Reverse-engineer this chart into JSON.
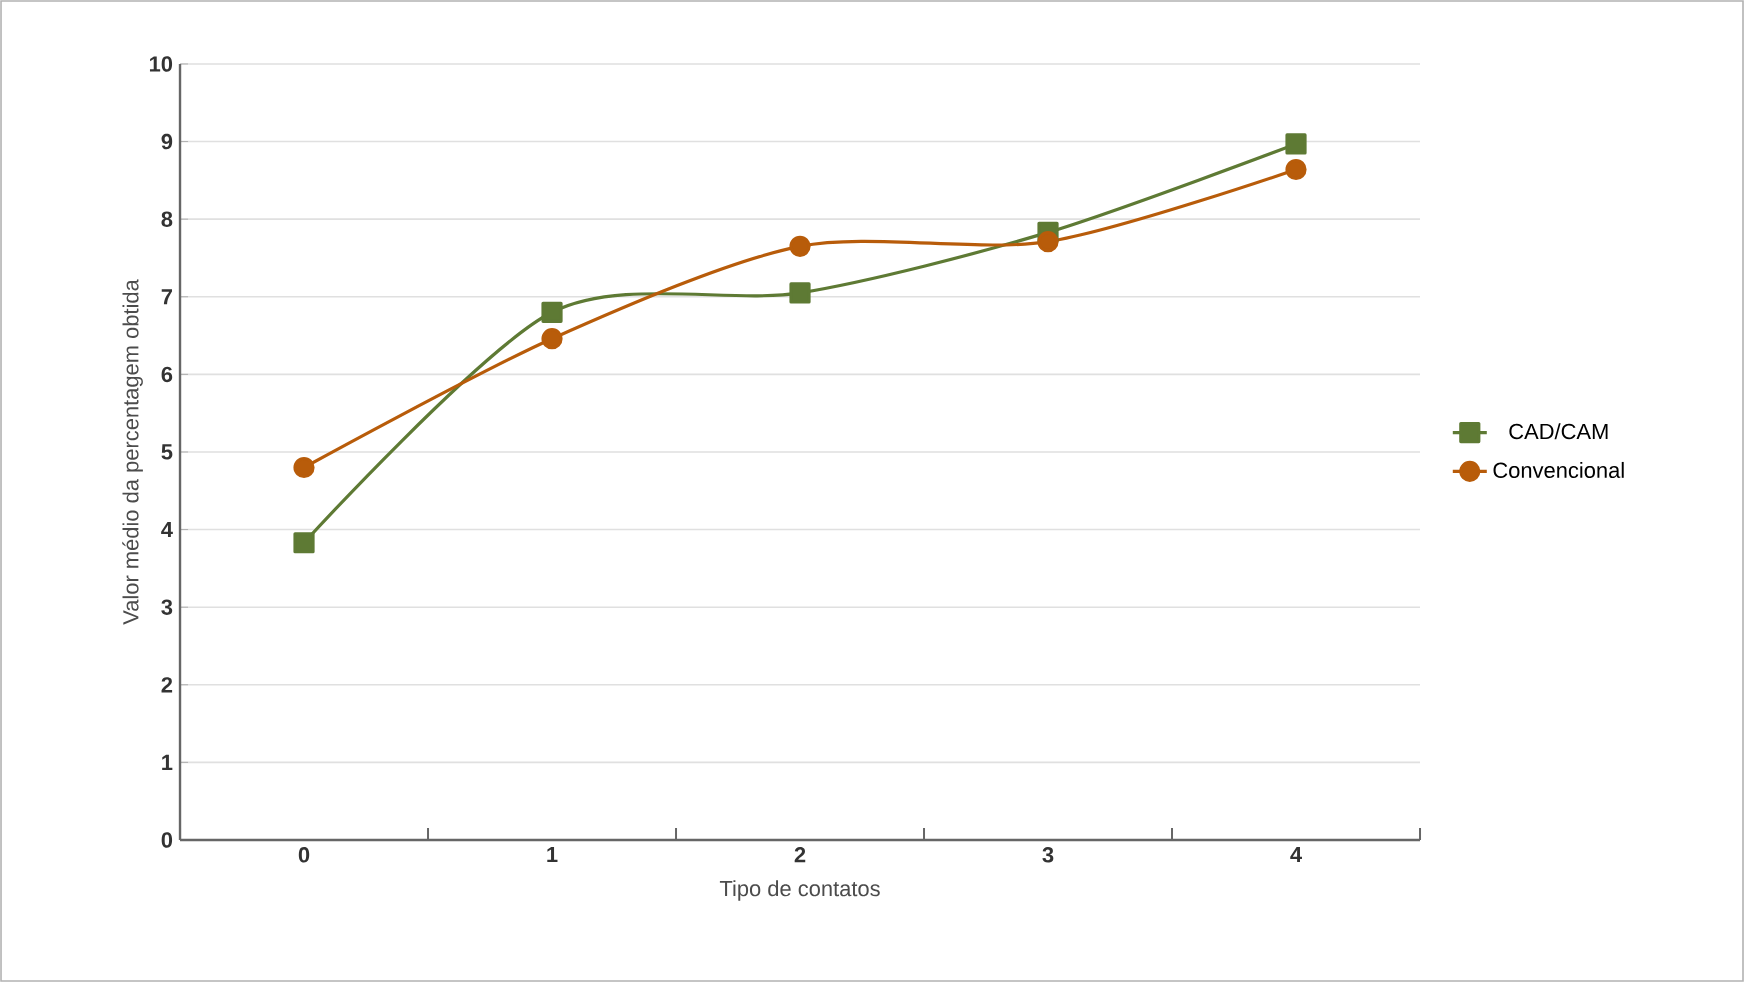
{
  "chart_data": {
    "type": "line",
    "xlabel": "Tipo de contatos",
    "ylabel": "Valor médio da percentagem obtida",
    "categories": [
      "0",
      "1",
      "2",
      "3",
      "4"
    ],
    "series": [
      {
        "name": "CAD/CAM",
        "color": "#5e7a34",
        "marker": "square",
        "values": [
          3.83,
          6.8,
          7.05,
          7.83,
          8.97
        ]
      },
      {
        "name": "Convencional",
        "color": "#b85c0a",
        "marker": "circle",
        "values": [
          4.8,
          6.46,
          7.65,
          7.71,
          8.64
        ]
      }
    ],
    "ylim": [
      0,
      10
    ],
    "yticks": [
      0,
      1,
      2,
      3,
      4,
      5,
      6,
      7,
      8,
      9,
      10
    ],
    "grid": "y",
    "legend": "right"
  }
}
